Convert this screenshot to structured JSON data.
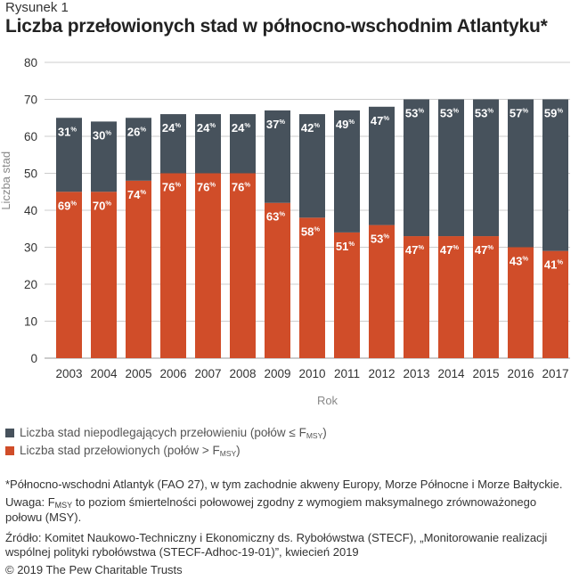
{
  "figure_label": "Rysunek 1",
  "title": "Liczba przełowionych stad w północno-wschodnim Atlantyku*",
  "colors": {
    "not_overfished": "#47525c",
    "overfished": "#d04d29",
    "grid": "#cccccc",
    "axis_text": "#333333",
    "axis_label": "#888888"
  },
  "legend": {
    "not_overfished": {
      "text": "Liczba stad niepodlegających przełowieniu (połów ≤ F",
      "sub": "MSY",
      "end": ")"
    },
    "overfished": {
      "text": "Liczba stad przełowionych (połów > F",
      "sub": "MSY",
      "end": ")"
    }
  },
  "notes": {
    "footnote": "*Północno-wschodni Atlantyk (FAO 27), w tym zachodnie akweny Europy, Morze Północne i Morze Bałtyckie.",
    "uwaga_prefix": "Uwaga: F",
    "uwaga_sub": "MSY",
    "uwaga_rest": " to poziom śmiertelności połowowej zgodny z wymogiem maksymalnego zrównoważonego połowu (MSY).",
    "source": "Źródło: Komitet Naukowo-Techniczny i Ekonomiczny ds. Rybołówstwa (STECF), „Monitorowanie realizacji wspólnej polityki rybołówstwa (STECF-Adhoc-19-01)”, kwiecień 2019",
    "copyright": "© 2019 The Pew Charitable Trusts"
  },
  "chart_data": {
    "type": "bar",
    "stacked": true,
    "xlabel": "Rok",
    "ylabel": "Liczba stad",
    "ylim": [
      0,
      80
    ],
    "yticks": [
      0,
      10,
      20,
      30,
      40,
      50,
      60,
      70,
      80
    ],
    "grid": true,
    "categories": [
      "2003",
      "2004",
      "2005",
      "2006",
      "2007",
      "2008",
      "2009",
      "2010",
      "2011",
      "2012",
      "2013",
      "2014",
      "2015",
      "2016",
      "2017"
    ],
    "series": [
      {
        "key": "overfished",
        "values": [
          45,
          45,
          48,
          50,
          50,
          50,
          42,
          38,
          34,
          36,
          33,
          33,
          33,
          30,
          29
        ],
        "labels": [
          "69",
          "70",
          "74",
          "76",
          "76",
          "76",
          "63",
          "58",
          "51",
          "53",
          "47",
          "47",
          "47",
          "43",
          "41"
        ]
      },
      {
        "key": "not_overfished",
        "values": [
          20,
          19,
          17,
          16,
          16,
          16,
          25,
          28,
          33,
          32,
          37,
          37,
          37,
          40,
          41
        ],
        "labels": [
          "31",
          "30",
          "26",
          "24",
          "24",
          "24",
          "37",
          "42",
          "49",
          "47",
          "53",
          "53",
          "53",
          "57",
          "59"
        ]
      }
    ],
    "label_unit": "%"
  }
}
